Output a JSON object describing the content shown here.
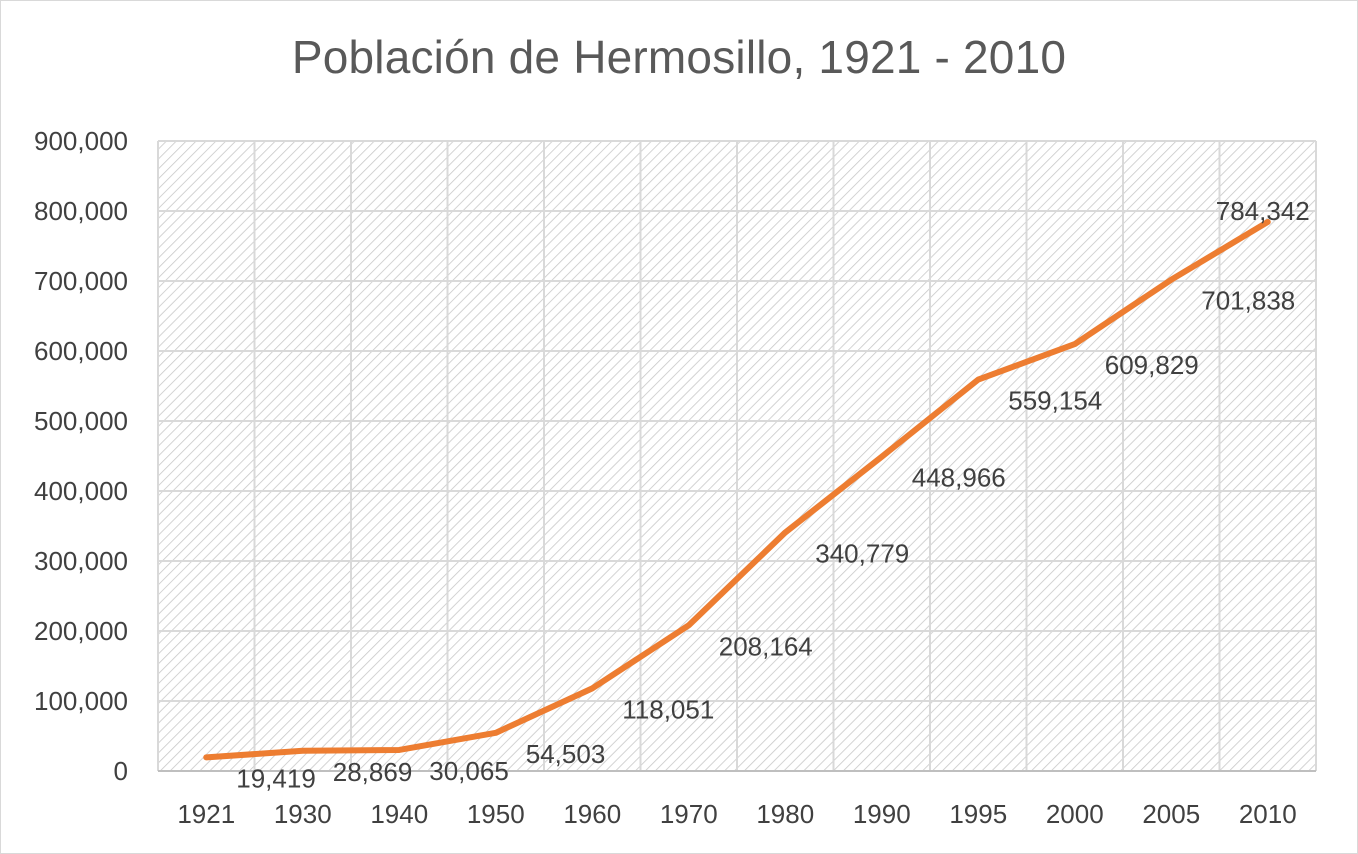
{
  "chart_data": {
    "type": "line",
    "title": "Población de Hermosillo, 1921 - 2010",
    "xlabel": "",
    "ylabel": "",
    "categories": [
      "1921",
      "1930",
      "1940",
      "1950",
      "1960",
      "1970",
      "1980",
      "1990",
      "1995",
      "2000",
      "2005",
      "2010"
    ],
    "series": [
      {
        "name": "Población",
        "values": [
          19419,
          28869,
          30065,
          54503,
          118051,
          208164,
          340779,
          448966,
          559154,
          609829,
          701838,
          784342
        ],
        "color": "#ed7d31"
      }
    ],
    "data_labels": [
      "19,419",
      "28,869",
      "30,065",
      "54,503",
      "118,051",
      "208,164",
      "340,779",
      "448,966",
      "559,154",
      "609,829",
      "701,838",
      "784,342"
    ],
    "ylim": [
      0,
      900000
    ],
    "yticks": [
      0,
      100000,
      200000,
      300000,
      400000,
      500000,
      600000,
      700000,
      800000,
      900000
    ],
    "ytick_labels": [
      "0",
      "100,000",
      "200,000",
      "300,000",
      "400,000",
      "500,000",
      "600,000",
      "700,000",
      "800,000",
      "900,000"
    ],
    "grid": true,
    "plot_area_pattern": "diagonal-hatch",
    "legend": "none"
  }
}
